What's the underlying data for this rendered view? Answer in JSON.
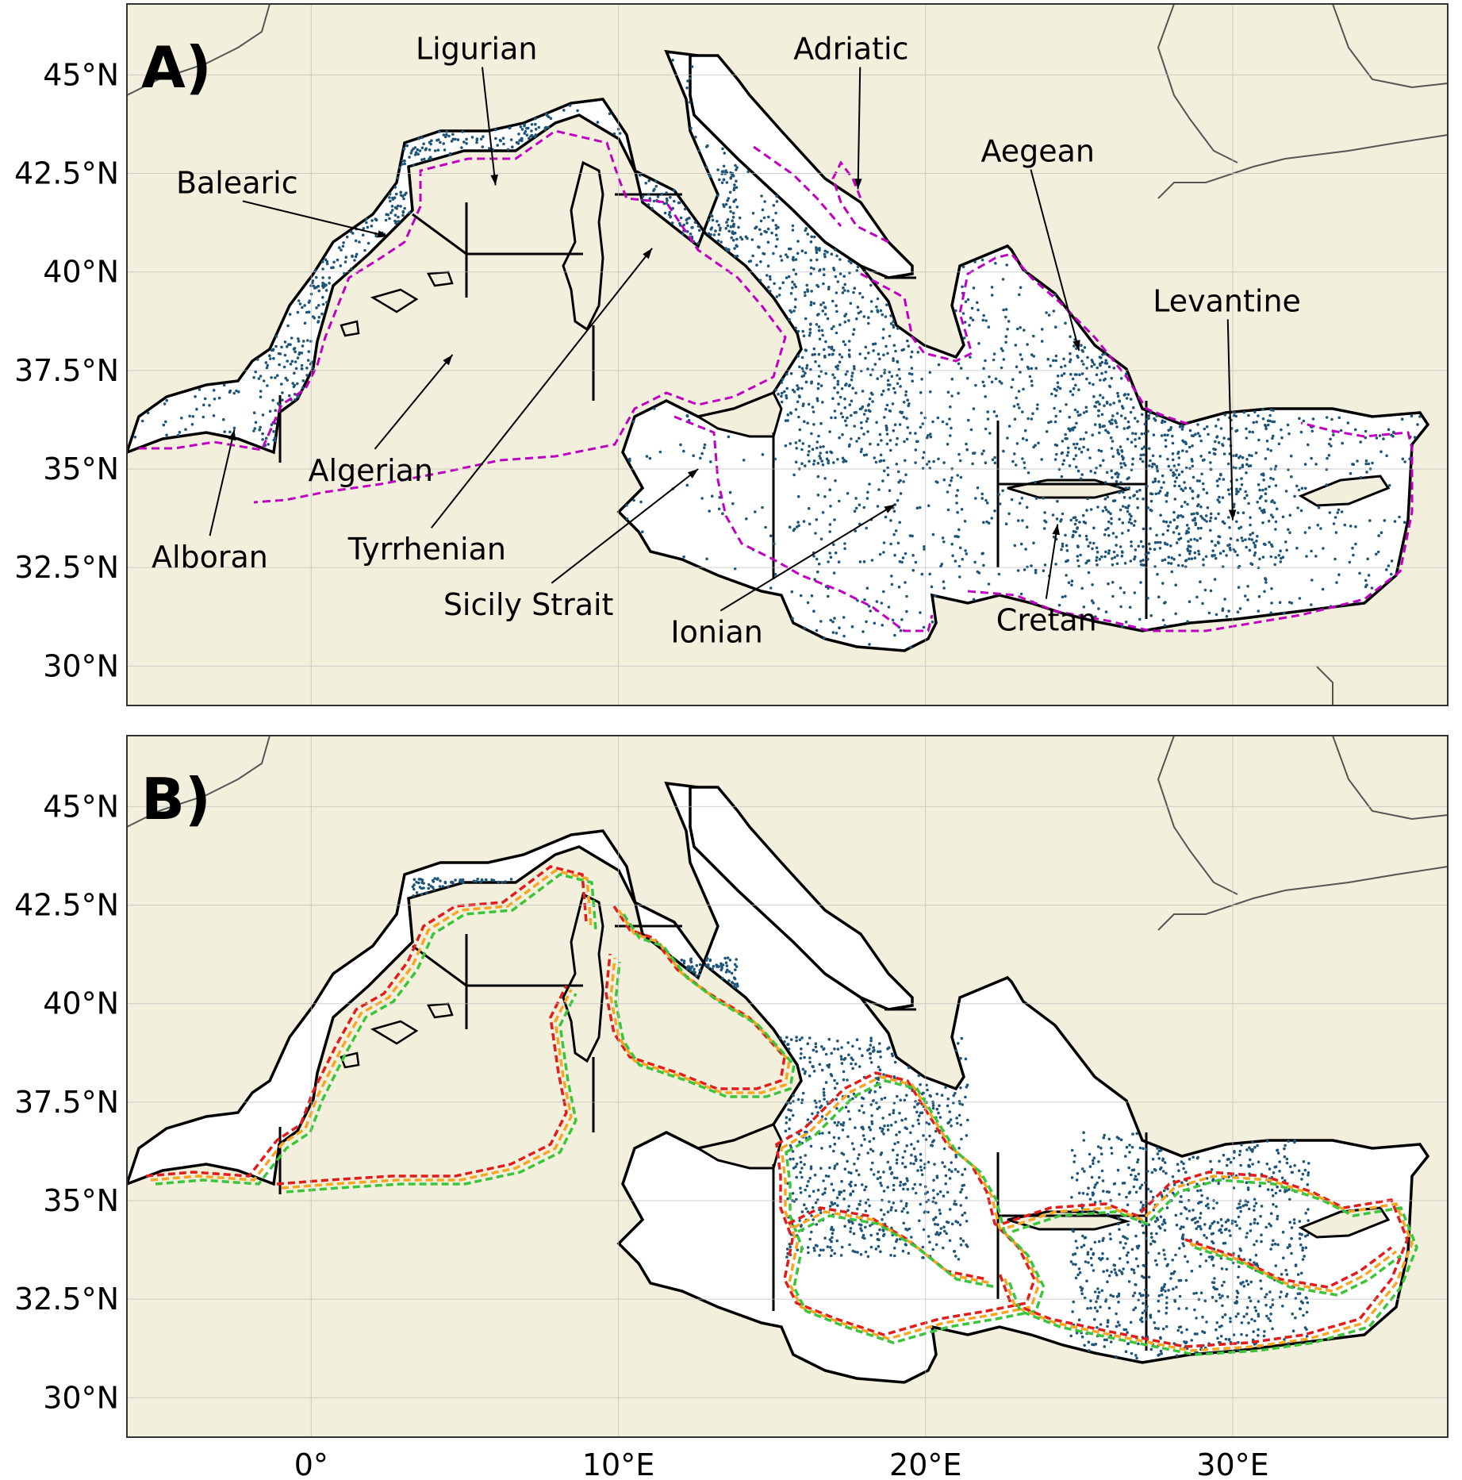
{
  "chart_data": [
    {
      "type": "map",
      "panel_label": "A)",
      "xlim": [
        -6,
        37
      ],
      "ylim": [
        29,
        46.8
      ],
      "x_ticks": [
        0,
        10,
        20,
        30
      ],
      "y_ticks": [
        30,
        32.5,
        35,
        37.5,
        40,
        42.5,
        45
      ],
      "x_tick_labels": [],
      "y_tick_labels": [
        "30°N",
        "32.5°N",
        "35°N",
        "37.5°N",
        "40°N",
        "42.5°N",
        "45°N"
      ],
      "grid": true,
      "colors": {
        "land": "#f2f0dc",
        "sea": "#ffffff",
        "points": "#1f5578",
        "contour": "#c000c0"
      },
      "region_labels": [
        {
          "name": "Ligurian",
          "lon": 3.4,
          "lat": 45.4,
          "arrow_to": [
            6.0,
            42.2
          ]
        },
        {
          "name": "Adriatic",
          "lon": 15.7,
          "lat": 45.4,
          "arrow_to": [
            17.8,
            42.1
          ]
        },
        {
          "name": "Balearic",
          "lon": -4.4,
          "lat": 42.0,
          "arrow_to": [
            2.5,
            40.9
          ]
        },
        {
          "name": "Aegean",
          "lon": 21.8,
          "lat": 42.8,
          "arrow_to": [
            25.0,
            38.0
          ]
        },
        {
          "name": "Levantine",
          "lon": 27.4,
          "lat": 39.0,
          "arrow_to": [
            30.0,
            33.7
          ]
        },
        {
          "name": "Algerian",
          "lon": -0.1,
          "lat": 34.7,
          "arrow_to": [
            4.6,
            37.9
          ]
        },
        {
          "name": "Tyrrhenian",
          "lon": 1.2,
          "lat": 32.7,
          "arrow_to": [
            11.1,
            40.6
          ]
        },
        {
          "name": "Alboran",
          "lon": -5.2,
          "lat": 32.5,
          "arrow_to": [
            -2.5,
            36.0
          ]
        },
        {
          "name": "Sicily Strait",
          "lon": 4.3,
          "lat": 31.3,
          "arrow_to": [
            12.6,
            35.0
          ]
        },
        {
          "name": "Ionian",
          "lon": 11.7,
          "lat": 30.6,
          "arrow_to": [
            19.0,
            34.1
          ]
        },
        {
          "name": "Cretan",
          "lon": 22.3,
          "lat": 30.9,
          "arrow_to": [
            24.3,
            33.6
          ]
        }
      ]
    },
    {
      "type": "map",
      "panel_label": "B)",
      "xlim": [
        -6,
        37
      ],
      "ylim": [
        29,
        46.8
      ],
      "x_ticks": [
        0,
        10,
        20,
        30
      ],
      "y_ticks": [
        30,
        32.5,
        35,
        37.5,
        40,
        42.5,
        45
      ],
      "x_tick_labels": [
        "0°",
        "10°E",
        "20°E",
        "30°E"
      ],
      "y_tick_labels": [
        "30°N",
        "32.5°N",
        "35°N",
        "37.5°N",
        "40°N",
        "42.5°N",
        "45°N"
      ],
      "grid": true,
      "colors": {
        "land": "#f2f0dc",
        "sea": "#ffffff",
        "points": "#1f5578",
        "contours": [
          "#e11c1c",
          "#f5a623",
          "#3cc43c"
        ]
      }
    }
  ]
}
